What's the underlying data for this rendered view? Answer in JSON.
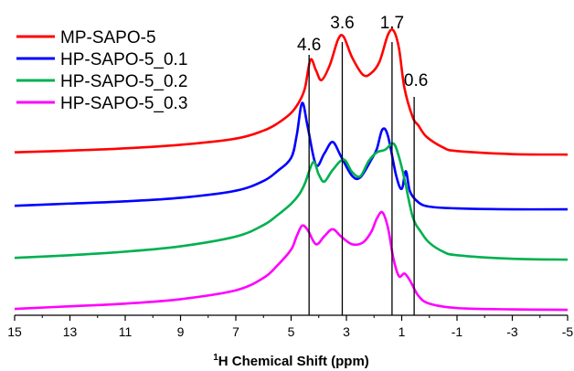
{
  "chart_data": {
    "type": "line",
    "title": "",
    "xlabel_prefix": "1",
    "xlabel_rest": "H Chemical Shift (ppm)",
    "xlim": [
      15,
      -5
    ],
    "x_ticks": [
      "15",
      "13",
      "11",
      "9",
      "7",
      "5",
      "3",
      "1",
      "-1",
      "-3",
      "-5"
    ],
    "y_axis_shown": false,
    "legend_position": "top-left",
    "peak_markers": [
      {
        "label": "4.6",
        "x": 4.35
      },
      {
        "label": "3.6",
        "x": 3.15
      },
      {
        "label": "1.7",
        "x": 1.35
      },
      {
        "label": "0.6",
        "x": 0.55
      }
    ],
    "series": [
      {
        "name": "MP-SAPO-5",
        "color": "#ff0000",
        "points": [
          [
            15,
            0.75
          ],
          [
            13,
            0.95
          ],
          [
            11,
            1.2
          ],
          [
            9,
            1.6
          ],
          [
            7,
            2.3
          ],
          [
            6,
            3.2
          ],
          [
            5.5,
            4.0
          ],
          [
            5,
            5.2
          ],
          [
            4.7,
            6.5
          ],
          [
            4.5,
            8.0
          ],
          [
            4.3,
            11.2
          ],
          [
            4.1,
            10.0
          ],
          [
            3.9,
            8.9
          ],
          [
            3.6,
            10.6
          ],
          [
            3.3,
            13.5
          ],
          [
            3.1,
            13.8
          ],
          [
            2.8,
            11.5
          ],
          [
            2.4,
            9.5
          ],
          [
            2.1,
            9.7
          ],
          [
            1.8,
            11.0
          ],
          [
            1.5,
            14.0
          ],
          [
            1.3,
            14.5
          ],
          [
            1.1,
            12.5
          ],
          [
            0.9,
            8.0
          ],
          [
            0.6,
            4.7
          ],
          [
            0.4,
            3.8
          ],
          [
            0.1,
            2.5
          ],
          [
            -0.5,
            1.3
          ],
          [
            -1,
            0.9
          ],
          [
            -3,
            0.55
          ],
          [
            -5,
            0.5
          ]
        ]
      },
      {
        "name": "HP-SAPO-5_0.1",
        "color": "#0000ff",
        "points": [
          [
            15,
            0.6
          ],
          [
            13,
            0.85
          ],
          [
            11,
            1.1
          ],
          [
            9,
            1.5
          ],
          [
            7,
            2.3
          ],
          [
            6,
            3.4
          ],
          [
            5.5,
            4.5
          ],
          [
            5,
            6.0
          ],
          [
            4.8,
            8.5
          ],
          [
            4.6,
            12.2
          ],
          [
            4.4,
            9.5
          ],
          [
            4.1,
            5.2
          ],
          [
            3.8,
            6.5
          ],
          [
            3.5,
            7.8
          ],
          [
            3.2,
            6.2
          ],
          [
            2.8,
            4.0
          ],
          [
            2.5,
            3.8
          ],
          [
            2.1,
            5.8
          ],
          [
            1.9,
            7.0
          ],
          [
            1.7,
            9.2
          ],
          [
            1.5,
            8.5
          ],
          [
            1.2,
            4.0
          ],
          [
            1,
            2.5
          ],
          [
            0.85,
            4.5
          ],
          [
            0.7,
            2.2
          ],
          [
            0.4,
            1.0
          ],
          [
            0,
            0.5
          ],
          [
            -1,
            0.3
          ],
          [
            -3,
            0.2
          ],
          [
            -5,
            0.2
          ]
        ]
      },
      {
        "name": "HP-SAPO-5_0.2",
        "color": "#00b050",
        "points": [
          [
            15,
            0.6
          ],
          [
            13,
            0.9
          ],
          [
            11,
            1.3
          ],
          [
            9,
            1.9
          ],
          [
            7,
            3.0
          ],
          [
            6,
            4.3
          ],
          [
            5.5,
            5.4
          ],
          [
            5,
            6.7
          ],
          [
            4.7,
            7.8
          ],
          [
            4.5,
            9.0
          ],
          [
            4.2,
            11.4
          ],
          [
            4.0,
            10.0
          ],
          [
            3.8,
            9.2
          ],
          [
            3.5,
            10.5
          ],
          [
            3.1,
            11.7
          ],
          [
            2.8,
            10.3
          ],
          [
            2.5,
            9.8
          ],
          [
            2.2,
            11.5
          ],
          [
            1.9,
            12.5
          ],
          [
            1.6,
            12.8
          ],
          [
            1.3,
            13.5
          ],
          [
            1.1,
            12.0
          ],
          [
            0.9,
            9.5
          ],
          [
            0.6,
            5.2
          ],
          [
            0.3,
            3.5
          ],
          [
            0,
            2.3
          ],
          [
            -0.5,
            1.3
          ],
          [
            -1,
            0.9
          ],
          [
            -3,
            0.5
          ],
          [
            -5,
            0.4
          ]
        ]
      },
      {
        "name": "HP-SAPO-5_0.3",
        "color": "#ff00ff",
        "points": [
          [
            15,
            0.3
          ],
          [
            13,
            0.6
          ],
          [
            11,
            0.9
          ],
          [
            9,
            1.4
          ],
          [
            7,
            2.4
          ],
          [
            6,
            3.8
          ],
          [
            5.5,
            5.2
          ],
          [
            5,
            7.0
          ],
          [
            4.8,
            8.5
          ],
          [
            4.6,
            9.7
          ],
          [
            4.4,
            9.2
          ],
          [
            4.1,
            7.6
          ],
          [
            3.8,
            8.5
          ],
          [
            3.5,
            9.3
          ],
          [
            3.2,
            8.5
          ],
          [
            2.8,
            7.6
          ],
          [
            2.4,
            7.8
          ],
          [
            2.1,
            9.0
          ],
          [
            1.9,
            10.5
          ],
          [
            1.7,
            11.2
          ],
          [
            1.5,
            9.5
          ],
          [
            1.3,
            6.0
          ],
          [
            1.1,
            4.0
          ],
          [
            0.9,
            4.3
          ],
          [
            0.7,
            3.5
          ],
          [
            0.4,
            1.8
          ],
          [
            0,
            0.9
          ],
          [
            -1,
            0.4
          ],
          [
            -3,
            0.25
          ],
          [
            -5,
            0.2
          ]
        ]
      }
    ]
  }
}
